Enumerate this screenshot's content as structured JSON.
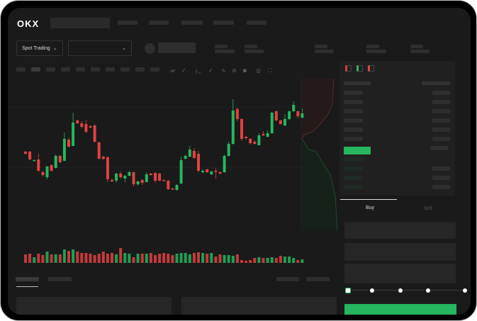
{
  "header": {
    "logo": "OKX"
  },
  "market": {
    "mode_label": "Spot Trading",
    "pair_select_value": ""
  },
  "trade": {
    "buy_tab": "Buy",
    "sell_tab": "Sell",
    "leverage_steps": 5,
    "selected_step": 0
  },
  "colors": {
    "up": "#25b65f",
    "down": "#e04242",
    "background": "#1a1a1a",
    "accent": "#25b65f"
  },
  "icons": [
    "chevron-down-icon",
    "indicator-icon",
    "draw-line-icon",
    "pencil-icon",
    "camera-icon",
    "settings-icon",
    "fullscreen-icon",
    "orderbook-both-icon",
    "orderbook-bids-icon",
    "orderbook-asks-icon"
  ],
  "chart": {
    "type": "candlestick",
    "candles": [
      [
        97,
        98,
        93,
        94
      ],
      [
        97,
        98,
        85,
        86
      ],
      [
        84,
        86,
        84,
        85
      ],
      [
        86,
        94,
        69,
        70
      ],
      [
        68,
        70,
        62,
        64
      ],
      [
        61,
        77,
        58,
        76
      ],
      [
        78,
        79,
        69,
        70
      ],
      [
        74,
        93,
        73,
        91
      ],
      [
        91,
        92,
        81,
        82
      ],
      [
        84,
        124,
        84,
        115
      ],
      [
        114,
        117,
        103,
        104
      ],
      [
        105,
        152,
        105,
        138
      ],
      [
        141,
        142,
        136,
        137
      ],
      [
        137,
        140,
        130,
        132
      ],
      [
        136,
        142,
        123,
        125
      ],
      [
        133,
        134,
        130,
        131
      ],
      [
        134,
        136,
        110,
        111
      ],
      [
        110,
        111,
        86,
        87
      ],
      [
        90,
        91,
        85,
        87
      ],
      [
        89,
        90,
        54,
        58
      ],
      [
        57,
        59,
        54,
        55
      ],
      [
        56,
        67,
        53,
        66
      ],
      [
        66,
        69,
        59,
        61
      ],
      [
        59,
        64,
        54,
        63
      ],
      [
        63,
        70,
        62,
        68
      ],
      [
        68,
        69,
        48,
        51
      ],
      [
        51,
        56,
        49,
        55
      ],
      [
        57,
        58,
        50,
        53
      ],
      [
        54,
        68,
        54,
        65
      ],
      [
        66,
        67,
        63,
        64
      ],
      [
        67,
        68,
        53,
        56
      ],
      [
        66,
        67,
        55,
        56
      ],
      [
        57,
        58,
        55,
        56
      ],
      [
        56,
        57,
        43,
        44
      ],
      [
        45,
        46,
        43,
        44
      ],
      [
        43,
        51,
        42,
        50
      ],
      [
        52,
        90,
        51,
        85
      ],
      [
        87,
        93,
        86,
        91
      ],
      [
        90,
        105,
        89,
        100
      ],
      [
        98,
        102,
        87,
        88
      ],
      [
        94,
        98,
        68,
        70
      ],
      [
        68,
        72,
        66,
        70
      ],
      [
        72,
        73,
        67,
        68
      ],
      [
        65,
        70,
        64,
        69
      ],
      [
        70,
        74,
        59,
        69
      ],
      [
        68,
        69,
        65,
        66
      ],
      [
        68,
        93,
        67,
        91
      ],
      [
        91,
        111,
        90,
        108
      ],
      [
        108,
        171,
        107,
        155
      ],
      [
        157,
        159,
        140,
        143
      ],
      [
        143,
        144,
        112,
        115
      ],
      [
        118,
        119,
        114,
        116
      ],
      [
        115,
        116,
        107,
        109
      ],
      [
        111,
        113,
        107,
        108
      ],
      [
        106,
        123,
        106,
        120
      ],
      [
        122,
        126,
        119,
        120
      ],
      [
        118,
        127,
        117,
        123
      ],
      [
        123,
        153,
        122,
        152
      ],
      [
        154,
        155,
        140,
        141
      ],
      [
        141,
        142,
        135,
        136
      ],
      [
        134,
        150,
        133,
        143
      ],
      [
        143,
        155,
        142,
        154
      ],
      [
        154,
        168,
        153,
        163
      ],
      [
        154,
        155,
        144,
        147
      ],
      [
        145,
        158,
        144,
        151
      ]
    ],
    "volumes": [
      12,
      13,
      8,
      13,
      11,
      16,
      12,
      12,
      12,
      19,
      17,
      19,
      16,
      14,
      14,
      13,
      11,
      13,
      16,
      13,
      14,
      12,
      21,
      14,
      13,
      8,
      13,
      13,
      13,
      14,
      11,
      13,
      14,
      13,
      11,
      13,
      14,
      14,
      12,
      14,
      15,
      14,
      13,
      14,
      9,
      12,
      11,
      11,
      10,
      12,
      4,
      3,
      4,
      7,
      8,
      7,
      7,
      8,
      7,
      10,
      9,
      9,
      7,
      4,
      5
    ]
  }
}
